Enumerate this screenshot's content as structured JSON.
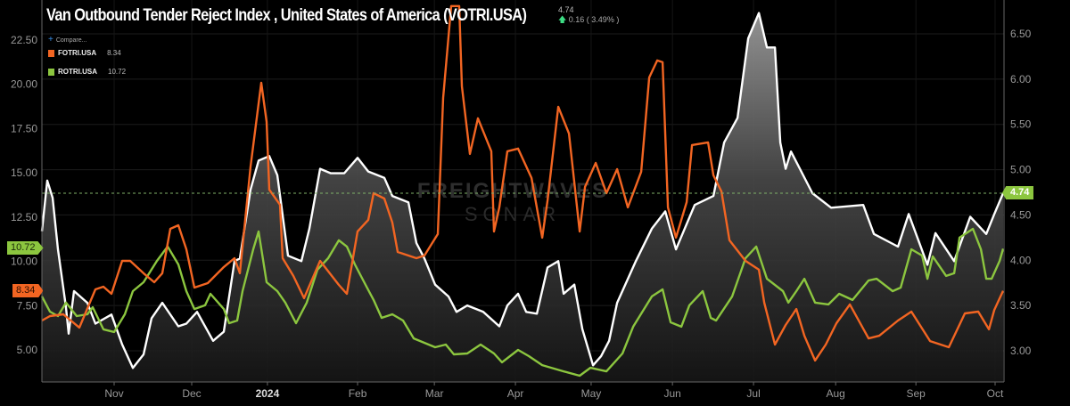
{
  "header": {
    "title": "Van Outbound Tender Reject Index , United States of America (VOTRI.USA)",
    "last_value": "4.74",
    "change": "0.16 ( 3.49% )",
    "compare_label": "Compare..."
  },
  "legend": [
    {
      "name": "FOTRI.USA",
      "value": "8.34",
      "color": "#f26522"
    },
    {
      "name": "ROTRI.USA",
      "value": "10.72",
      "color": "#8cc63f"
    }
  ],
  "badges": {
    "left_green": "10.72",
    "left_orange": "8.34",
    "right_white": "4.74"
  },
  "watermark": {
    "line1": "FREIGHTWAVES",
    "line2": "SONAR"
  },
  "chart_data": {
    "type": "line",
    "title": "Van Outbound Tender Reject Index , United States of America (VOTRI.USA)",
    "x_unit": "days since start of visible range",
    "xlim": [
      0,
      359.3
    ],
    "x_ticks": [
      {
        "label": "Nov",
        "day": 27
      },
      {
        "label": "Dec",
        "day": 56
      },
      {
        "label": "2024",
        "day": 84.3
      },
      {
        "label": "Feb",
        "day": 118
      },
      {
        "label": "Mar",
        "day": 146.7
      },
      {
        "label": "Apr",
        "day": 177
      },
      {
        "label": "May",
        "day": 205.3
      },
      {
        "label": "Jun",
        "day": 235.7
      },
      {
        "label": "Jul",
        "day": 266
      },
      {
        "label": "Aug",
        "day": 296.7
      },
      {
        "label": "Sep",
        "day": 326.7
      },
      {
        "label": "Oct",
        "day": 356.3
      }
    ],
    "left_axis": {
      "ylim": [
        2.85,
        24.4
      ],
      "ticks": [
        "5.00",
        "7.50",
        "10.00",
        "12.50",
        "15.00",
        "17.50",
        "20.00",
        "22.50"
      ]
    },
    "right_axis": {
      "ylim": [
        2.67,
        6.87
      ],
      "ticks": [
        "3.00",
        "3.50",
        "4.00",
        "4.50",
        "5.00",
        "5.50",
        "6.00",
        "6.50"
      ]
    },
    "reference_line": {
      "axis": "right",
      "value": 4.74
    },
    "grid": true,
    "legend_position": "top-left",
    "series": [
      {
        "name": "VOTRI.USA",
        "axis": "right",
        "color": "#ffffff",
        "area": true,
        "points": [
          [
            0,
            4.32
          ],
          [
            2,
            4.88
          ],
          [
            4,
            4.69
          ],
          [
            6,
            4.12
          ],
          [
            9,
            3.48
          ],
          [
            10,
            3.19
          ],
          [
            12,
            3.66
          ],
          [
            17,
            3.53
          ],
          [
            20,
            3.3
          ],
          [
            26,
            3.4
          ],
          [
            30,
            3.07
          ],
          [
            34,
            2.81
          ],
          [
            38,
            2.96
          ],
          [
            41,
            3.36
          ],
          [
            45,
            3.53
          ],
          [
            51,
            3.27
          ],
          [
            54,
            3.3
          ],
          [
            58,
            3.43
          ],
          [
            64,
            3.11
          ],
          [
            68,
            3.21
          ],
          [
            72,
            3.99
          ],
          [
            74,
            4.02
          ],
          [
            78,
            4.78
          ],
          [
            81,
            5.1
          ],
          [
            85,
            5.15
          ],
          [
            88,
            4.94
          ],
          [
            92,
            4.05
          ],
          [
            97,
            3.99
          ],
          [
            100,
            4.35
          ],
          [
            104,
            5.01
          ],
          [
            108,
            4.96
          ],
          [
            113,
            4.96
          ],
          [
            118,
            5.13
          ],
          [
            122,
            4.98
          ],
          [
            128,
            4.91
          ],
          [
            131,
            4.71
          ],
          [
            137,
            4.64
          ],
          [
            140,
            4.19
          ],
          [
            143,
            4.02
          ],
          [
            147,
            3.73
          ],
          [
            152,
            3.6
          ],
          [
            155,
            3.43
          ],
          [
            159,
            3.5
          ],
          [
            165,
            3.43
          ],
          [
            171,
            3.27
          ],
          [
            174,
            3.5
          ],
          [
            178,
            3.63
          ],
          [
            181,
            3.43
          ],
          [
            185,
            3.41
          ],
          [
            189,
            3.92
          ],
          [
            193,
            3.99
          ],
          [
            195,
            3.63
          ],
          [
            199,
            3.73
          ],
          [
            202,
            3.24
          ],
          [
            206,
            2.84
          ],
          [
            209,
            2.94
          ],
          [
            212,
            3.11
          ],
          [
            215,
            3.53
          ],
          [
            222,
            3.99
          ],
          [
            228,
            4.35
          ],
          [
            233,
            4.54
          ],
          [
            237,
            4.12
          ],
          [
            244,
            4.61
          ],
          [
            251,
            4.71
          ],
          [
            255,
            5.3
          ],
          [
            260,
            5.57
          ],
          [
            264,
            6.45
          ],
          [
            268,
            6.73
          ],
          [
            271,
            6.35
          ],
          [
            274,
            6.35
          ],
          [
            276,
            5.3
          ],
          [
            278,
            5.01
          ],
          [
            280,
            5.2
          ],
          [
            288,
            4.74
          ],
          [
            295,
            4.58
          ],
          [
            307,
            4.61
          ],
          [
            311,
            4.29
          ],
          [
            320,
            4.15
          ],
          [
            324,
            4.51
          ],
          [
            331,
            3.95
          ],
          [
            334,
            4.3
          ],
          [
            341,
            3.99
          ],
          [
            347,
            4.48
          ],
          [
            353,
            4.29
          ],
          [
            356,
            4.51
          ],
          [
            359.3,
            4.74
          ]
        ]
      },
      {
        "name": "FOTRI.USA",
        "axis": "left",
        "color": "#f26522",
        "points": [
          [
            0,
            6.66
          ],
          [
            3,
            6.91
          ],
          [
            8,
            7.01
          ],
          [
            14,
            6.26
          ],
          [
            20,
            8.42
          ],
          [
            23,
            8.57
          ],
          [
            26,
            8.17
          ],
          [
            30,
            10.03
          ],
          [
            33,
            10.03
          ],
          [
            38,
            9.33
          ],
          [
            42,
            8.82
          ],
          [
            45,
            9.33
          ],
          [
            48,
            11.84
          ],
          [
            51,
            12.04
          ],
          [
            54,
            10.68
          ],
          [
            57,
            8.52
          ],
          [
            62,
            8.77
          ],
          [
            68,
            9.68
          ],
          [
            72,
            10.18
          ],
          [
            74,
            9.33
          ],
          [
            78,
            15.36
          ],
          [
            82,
            20.09
          ],
          [
            84,
            17.88
          ],
          [
            85,
            14.05
          ],
          [
            89,
            13.2
          ],
          [
            90,
            10.18
          ],
          [
            94,
            9.18
          ],
          [
            98,
            7.92
          ],
          [
            104,
            10.03
          ],
          [
            111,
            8.67
          ],
          [
            114,
            8.17
          ],
          [
            118,
            11.69
          ],
          [
            122,
            12.34
          ],
          [
            124,
            13.85
          ],
          [
            128,
            13.55
          ],
          [
            131,
            12.19
          ],
          [
            133,
            10.53
          ],
          [
            140,
            10.18
          ],
          [
            143,
            10.33
          ],
          [
            148,
            11.54
          ],
          [
            150,
            19.24
          ],
          [
            153,
            24.42
          ],
          [
            156,
            24.42
          ],
          [
            157,
            19.89
          ],
          [
            160,
            16.07
          ],
          [
            163,
            18.08
          ],
          [
            168,
            16.22
          ],
          [
            169,
            11.69
          ],
          [
            171,
            13.05
          ],
          [
            174,
            16.22
          ],
          [
            178,
            16.37
          ],
          [
            183,
            14.71
          ],
          [
            187,
            11.34
          ],
          [
            189,
            13.45
          ],
          [
            193,
            18.73
          ],
          [
            197,
            17.22
          ],
          [
            201,
            11.69
          ],
          [
            203,
            14.21
          ],
          [
            207,
            15.56
          ],
          [
            211,
            13.85
          ],
          [
            215,
            15.21
          ],
          [
            219,
            13.05
          ],
          [
            224,
            15.06
          ],
          [
            227,
            20.39
          ],
          [
            230,
            21.35
          ],
          [
            232,
            21.25
          ],
          [
            234,
            13.05
          ],
          [
            237,
            11.34
          ],
          [
            241,
            13.35
          ],
          [
            243,
            16.57
          ],
          [
            249,
            16.72
          ],
          [
            251,
            14.86
          ],
          [
            254,
            13.95
          ],
          [
            257,
            11.19
          ],
          [
            263,
            10.03
          ],
          [
            268,
            9.53
          ],
          [
            270,
            7.67
          ],
          [
            274,
            5.3
          ],
          [
            278,
            6.41
          ],
          [
            282,
            7.31
          ],
          [
            285,
            5.8
          ],
          [
            289,
            4.4
          ],
          [
            293,
            5.3
          ],
          [
            297,
            6.51
          ],
          [
            302,
            7.57
          ],
          [
            309,
            5.65
          ],
          [
            313,
            5.8
          ],
          [
            320,
            6.66
          ],
          [
            325,
            7.16
          ],
          [
            332,
            5.5
          ],
          [
            339,
            5.15
          ],
          [
            345,
            7.06
          ],
          [
            350,
            7.16
          ],
          [
            354,
            6.16
          ],
          [
            356,
            7.26
          ],
          [
            359.3,
            8.34
          ]
        ]
      },
      {
        "name": "ROTRI.USA",
        "axis": "left",
        "color": "#8cc63f",
        "points": [
          [
            0,
            8.02
          ],
          [
            3,
            7.16
          ],
          [
            6,
            6.91
          ],
          [
            9,
            7.67
          ],
          [
            13,
            6.91
          ],
          [
            17,
            7.01
          ],
          [
            19,
            7.41
          ],
          [
            23,
            6.16
          ],
          [
            27,
            6.01
          ],
          [
            31,
            7.01
          ],
          [
            34,
            8.32
          ],
          [
            38,
            8.82
          ],
          [
            43,
            10.03
          ],
          [
            47,
            10.84
          ],
          [
            51,
            9.83
          ],
          [
            54,
            8.32
          ],
          [
            57,
            7.31
          ],
          [
            61,
            7.52
          ],
          [
            63,
            8.17
          ],
          [
            68,
            7.31
          ],
          [
            70,
            6.51
          ],
          [
            73,
            6.66
          ],
          [
            75,
            8.32
          ],
          [
            79,
            10.68
          ],
          [
            81,
            11.69
          ],
          [
            84,
            8.82
          ],
          [
            88,
            8.32
          ],
          [
            91,
            7.67
          ],
          [
            95,
            6.51
          ],
          [
            99,
            7.67
          ],
          [
            103,
            9.53
          ],
          [
            107,
            10.18
          ],
          [
            111,
            11.19
          ],
          [
            114,
            10.84
          ],
          [
            117,
            9.83
          ],
          [
            121,
            8.67
          ],
          [
            124,
            7.82
          ],
          [
            127,
            6.81
          ],
          [
            131,
            7.01
          ],
          [
            135,
            6.66
          ],
          [
            139,
            5.65
          ],
          [
            147,
            5.15
          ],
          [
            151,
            5.3
          ],
          [
            154,
            4.75
          ],
          [
            159,
            4.8
          ],
          [
            164,
            5.3
          ],
          [
            169,
            4.8
          ],
          [
            172,
            4.3
          ],
          [
            178,
            5.0
          ],
          [
            182,
            4.65
          ],
          [
            187,
            4.14
          ],
          [
            195,
            3.79
          ],
          [
            201,
            3.54
          ],
          [
            205,
            3.99
          ],
          [
            211,
            3.79
          ],
          [
            217,
            4.8
          ],
          [
            221,
            6.31
          ],
          [
            228,
            8.02
          ],
          [
            232,
            8.42
          ],
          [
            235,
            6.56
          ],
          [
            239,
            6.31
          ],
          [
            242,
            7.52
          ],
          [
            247,
            8.32
          ],
          [
            250,
            6.81
          ],
          [
            252,
            6.66
          ],
          [
            258,
            8.02
          ],
          [
            263,
            10.18
          ],
          [
            267,
            10.84
          ],
          [
            271,
            9.02
          ],
          [
            277,
            8.32
          ],
          [
            279,
            7.67
          ],
          [
            282,
            8.32
          ],
          [
            285,
            9.02
          ],
          [
            289,
            7.67
          ],
          [
            294,
            7.57
          ],
          [
            298,
            8.17
          ],
          [
            303,
            7.82
          ],
          [
            309,
            8.92
          ],
          [
            312,
            9.02
          ],
          [
            318,
            8.32
          ],
          [
            321,
            8.52
          ],
          [
            325,
            10.68
          ],
          [
            329,
            10.33
          ],
          [
            331,
            9.02
          ],
          [
            333,
            10.28
          ],
          [
            338,
            9.18
          ],
          [
            341,
            9.33
          ],
          [
            343,
            11.34
          ],
          [
            348,
            11.84
          ],
          [
            351,
            10.68
          ],
          [
            353,
            9.02
          ],
          [
            355,
            9.02
          ],
          [
            358,
            10.03
          ],
          [
            359.3,
            10.72
          ]
        ]
      }
    ]
  }
}
